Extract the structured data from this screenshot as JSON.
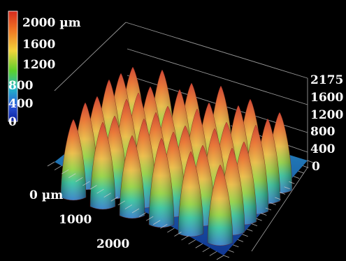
{
  "colorbar": {
    "labels": [
      "2000 µm",
      "1600",
      "1200",
      "800",
      "400",
      "0"
    ],
    "colors": [
      "#d62a1e",
      "#f07a24",
      "#f2d33a",
      "#5ccf2c",
      "#22b7c9",
      "#2a56d8",
      "#0a1c9c"
    ]
  },
  "z_axis": {
    "labels": [
      "2175",
      "1600",
      "1200",
      "800",
      "400",
      "0"
    ]
  },
  "xy_axis": {
    "labels": [
      "0 µm",
      "1000",
      "2000"
    ]
  },
  "surface": {
    "rows": 6,
    "cols": 6,
    "peak_height_um": 2175
  }
}
